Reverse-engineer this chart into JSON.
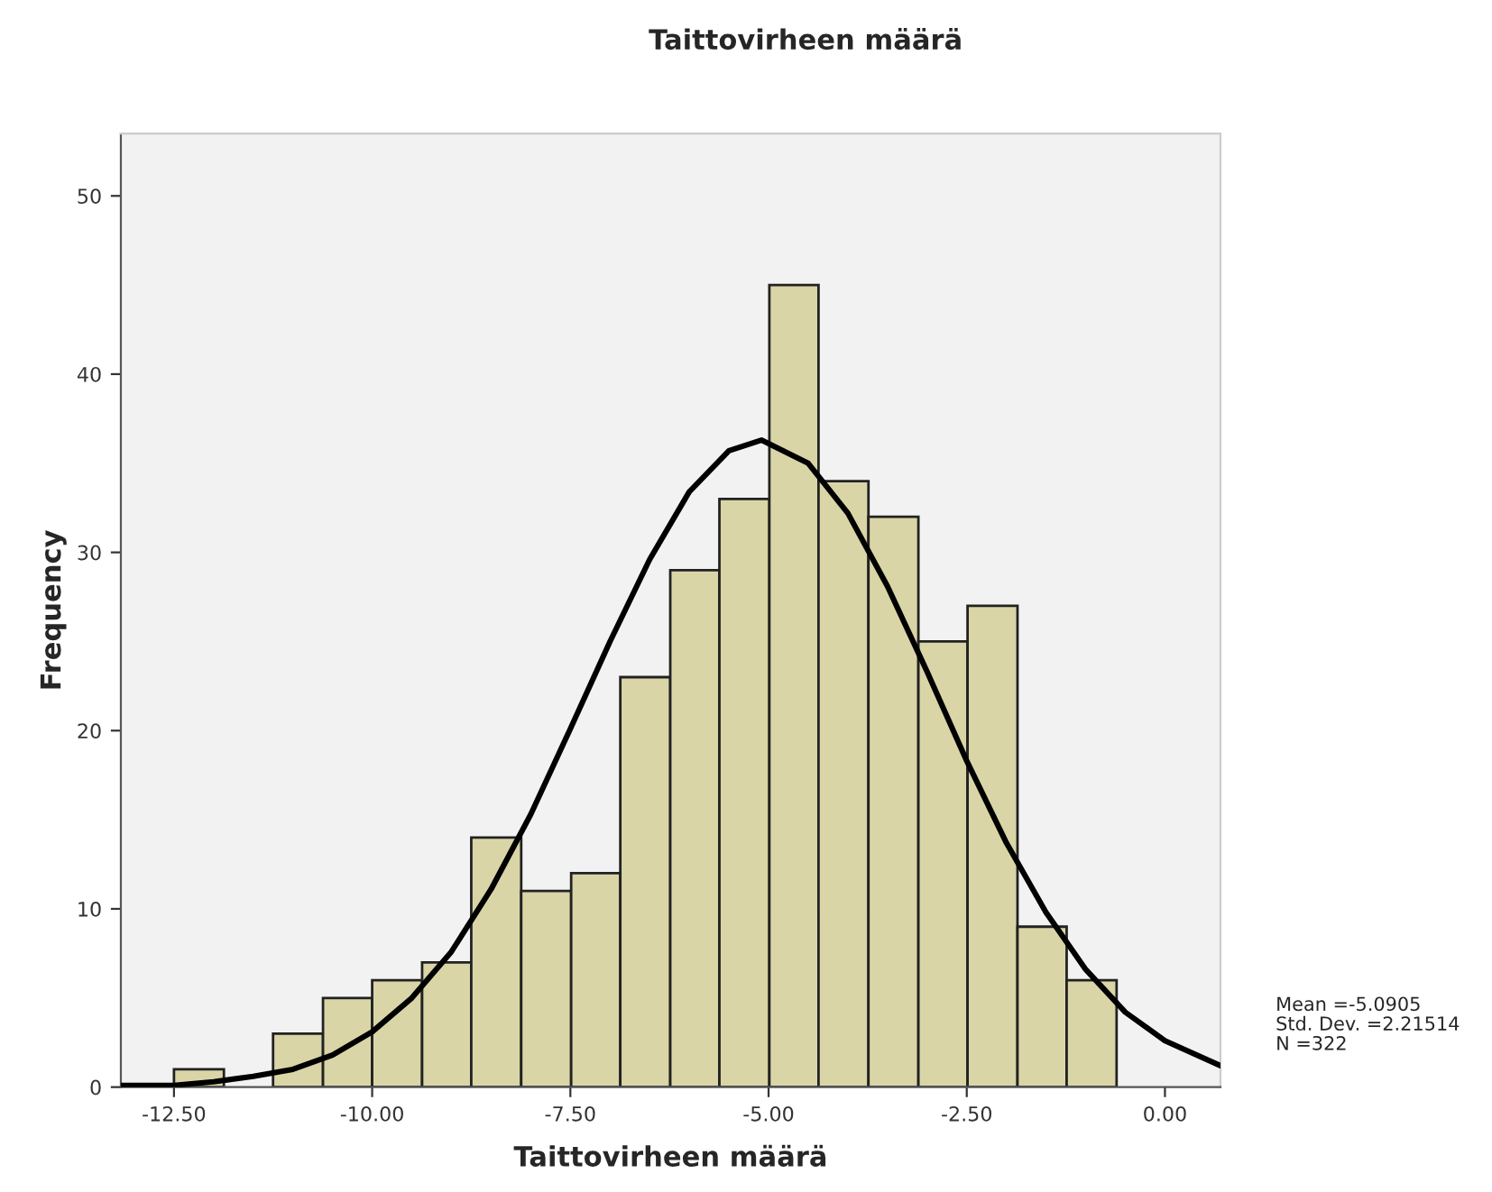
{
  "chart_data": {
    "type": "histogram",
    "title": "Taittovirheen määrä",
    "xlabel": "Taittovirheen määrä",
    "ylabel": "Frequency",
    "bins": [
      -12.5,
      -11.87,
      -11.25,
      -10.62,
      -10.0,
      -9.37,
      -8.75,
      -8.12,
      -7.49,
      -6.87,
      -6.24,
      -5.62,
      -4.99,
      -4.37,
      -3.74,
      -3.11,
      -2.49,
      -1.86,
      -1.24,
      -0.61
    ],
    "values": [
      1,
      0,
      3,
      5,
      6,
      7,
      14,
      11,
      12,
      23,
      29,
      33,
      45,
      34,
      32,
      25,
      27,
      9,
      6
    ],
    "color": "#d9d5a7",
    "series": [
      {
        "type": "line",
        "color": "#000000",
        "x": [
          -13.17,
          -13,
          -12.5,
          -12,
          -11.5,
          -11,
          -10.5,
          -10,
          -9.5,
          -9,
          -8.5,
          -8,
          -7.5,
          -7,
          -6.5,
          -6,
          -5.5,
          -5.09,
          -4.5,
          -4,
          -3.5,
          -3,
          -2.5,
          -2,
          -1.5,
          -1,
          -0.5,
          0,
          0.7
        ],
        "values": [
          0.1,
          0.1,
          0.1,
          0.3,
          0.6,
          1.0,
          1.8,
          3.1,
          5.0,
          7.6,
          11.1,
          15.3,
          20.1,
          25.0,
          29.6,
          33.4,
          35.7,
          36.3,
          35.0,
          32.2,
          28.1,
          23.3,
          18.3,
          13.7,
          9.8,
          6.6,
          4.2,
          2.6,
          1.2
        ]
      }
    ],
    "xlim": [
      -13.17,
      0.7
    ],
    "xticks": [
      {
        "value": -12.5,
        "label": "-12.50"
      },
      {
        "value": -10,
        "label": "-10.00"
      },
      {
        "value": -7.5,
        "label": "-7.50"
      },
      {
        "value": -5,
        "label": "-5.00"
      },
      {
        "value": -2.5,
        "label": "-2.50"
      },
      {
        "value": 0,
        "label": "0.00"
      }
    ],
    "ylim": [
      0,
      53.5
    ],
    "yticks": [
      0,
      10,
      20,
      30,
      40,
      50
    ],
    "annotations": [
      "Mean =-5.0905\nStd. Dev. =2.21514\nN =322"
    ],
    "grid": false,
    "legend": false
  }
}
